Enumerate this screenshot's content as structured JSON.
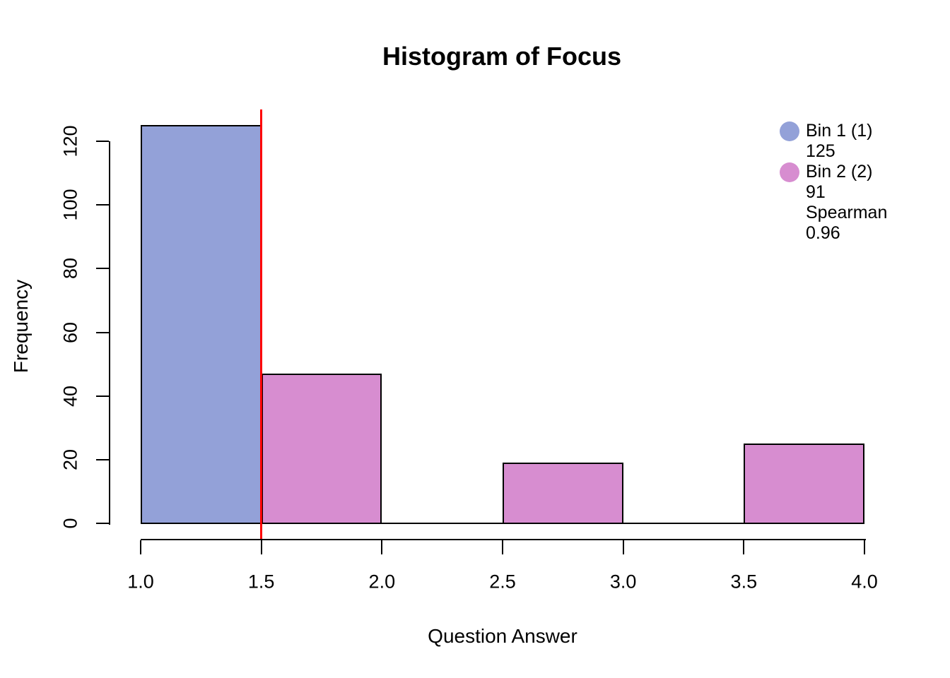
{
  "chart_data": {
    "type": "bar",
    "title": "Histogram of Focus",
    "xlabel": "Question Answer",
    "ylabel": "Frequency",
    "xlim": [
      1.0,
      4.0
    ],
    "ylim": [
      0,
      120
    ],
    "x_tick_values": [
      1.0,
      1.5,
      2.0,
      2.5,
      3.0,
      3.5,
      4.0
    ],
    "x_tick_labels": [
      "1.0",
      "1.5",
      "2.0",
      "2.5",
      "3.0",
      "3.5",
      "4.0"
    ],
    "y_tick_values": [
      0,
      20,
      40,
      60,
      80,
      100,
      120
    ],
    "y_tick_labels": [
      "0",
      "20",
      "40",
      "60",
      "80",
      "100",
      "120"
    ],
    "grid": false,
    "bins": [
      {
        "x0": 1.0,
        "x1": 1.5,
        "count": 125,
        "group": "bin1"
      },
      {
        "x0": 1.5,
        "x1": 2.0,
        "count": 47,
        "group": "bin2"
      },
      {
        "x0": 2.0,
        "x1": 2.5,
        "count": 0,
        "group": "bin2"
      },
      {
        "x0": 2.5,
        "x1": 3.0,
        "count": 19,
        "group": "bin2"
      },
      {
        "x0": 3.0,
        "x1": 3.5,
        "count": 0,
        "group": "bin2"
      },
      {
        "x0": 3.5,
        "x1": 4.0,
        "count": 25,
        "group": "bin2"
      }
    ],
    "vline": {
      "x": 1.5,
      "color": "#FF0000"
    },
    "colors": {
      "bin1": "#93A1D8",
      "bin2": "#D78DD0",
      "bar_border": "#000000",
      "axis": "#000000"
    },
    "legend": {
      "position": "top-right",
      "entries": [
        {
          "swatch": "#93A1D8",
          "label": "Bin 1 (1)",
          "sublines": [
            "125"
          ]
        },
        {
          "swatch": "#D78DD0",
          "label": "Bin 2 (2)",
          "sublines": [
            "91",
            "Spearman",
            "0.96"
          ]
        }
      ]
    }
  }
}
